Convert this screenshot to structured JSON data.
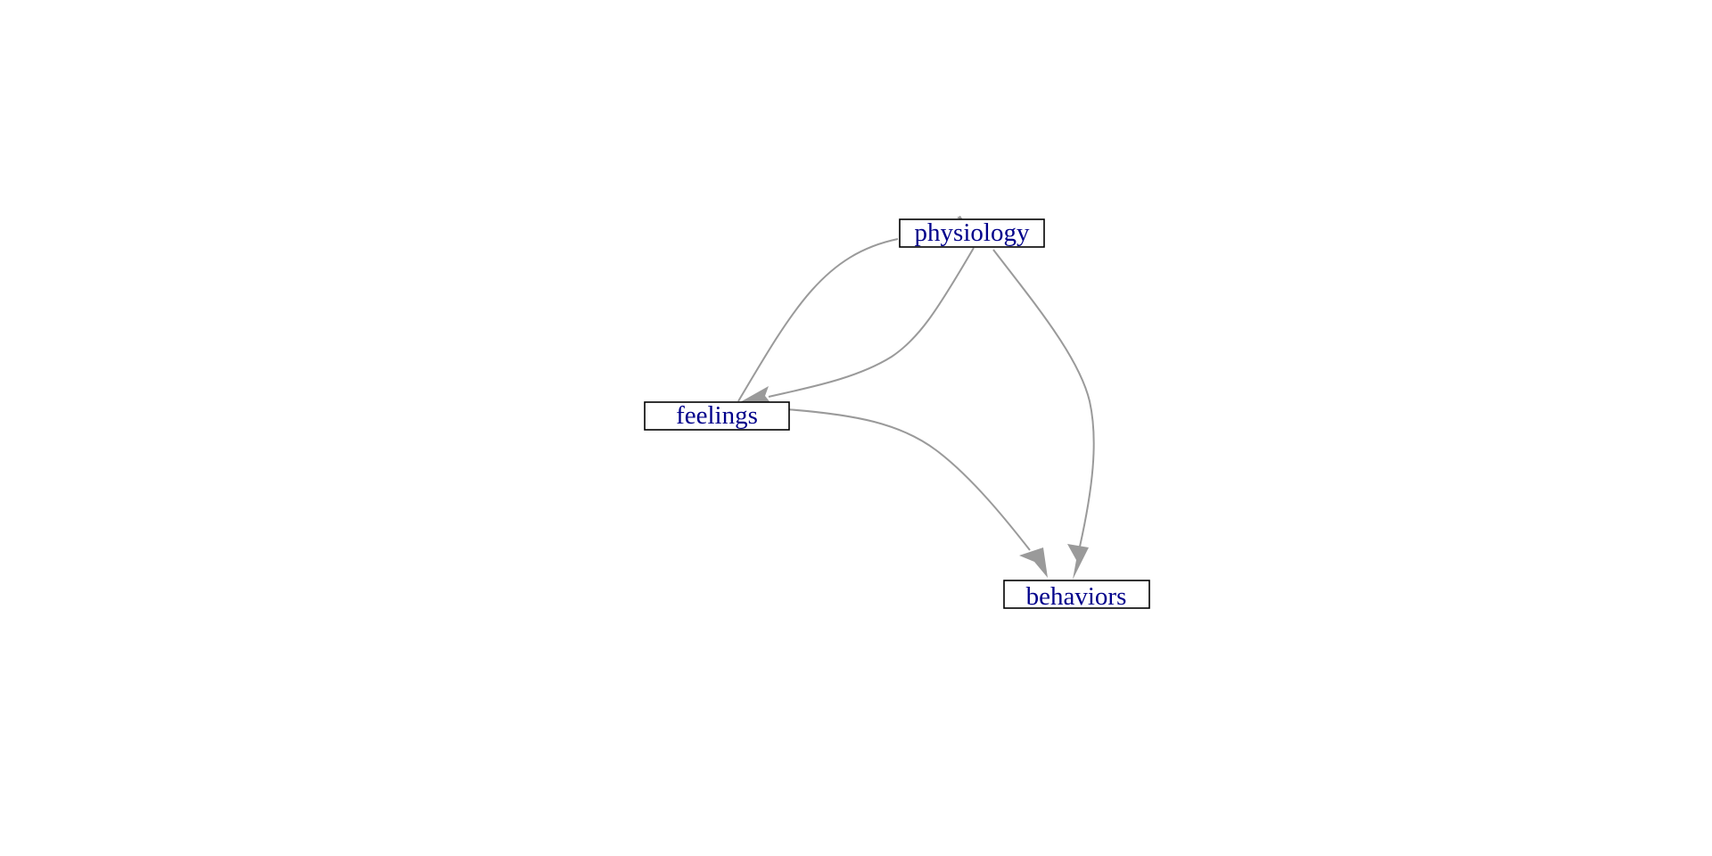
{
  "diagram": {
    "nodes": [
      {
        "id": "physiology",
        "label": "physiology"
      },
      {
        "id": "feelings",
        "label": "feelings"
      },
      {
        "id": "behaviors",
        "label": "behaviors"
      }
    ],
    "edges": [
      {
        "from": "physiology",
        "to": "feelings"
      },
      {
        "from": "feelings",
        "to": "physiology"
      },
      {
        "from": "feelings",
        "to": "behaviors"
      },
      {
        "from": "physiology",
        "to": "behaviors"
      }
    ],
    "colors": {
      "edge": "#9a9a9a",
      "label": "#00008b",
      "border": "#000000"
    }
  }
}
